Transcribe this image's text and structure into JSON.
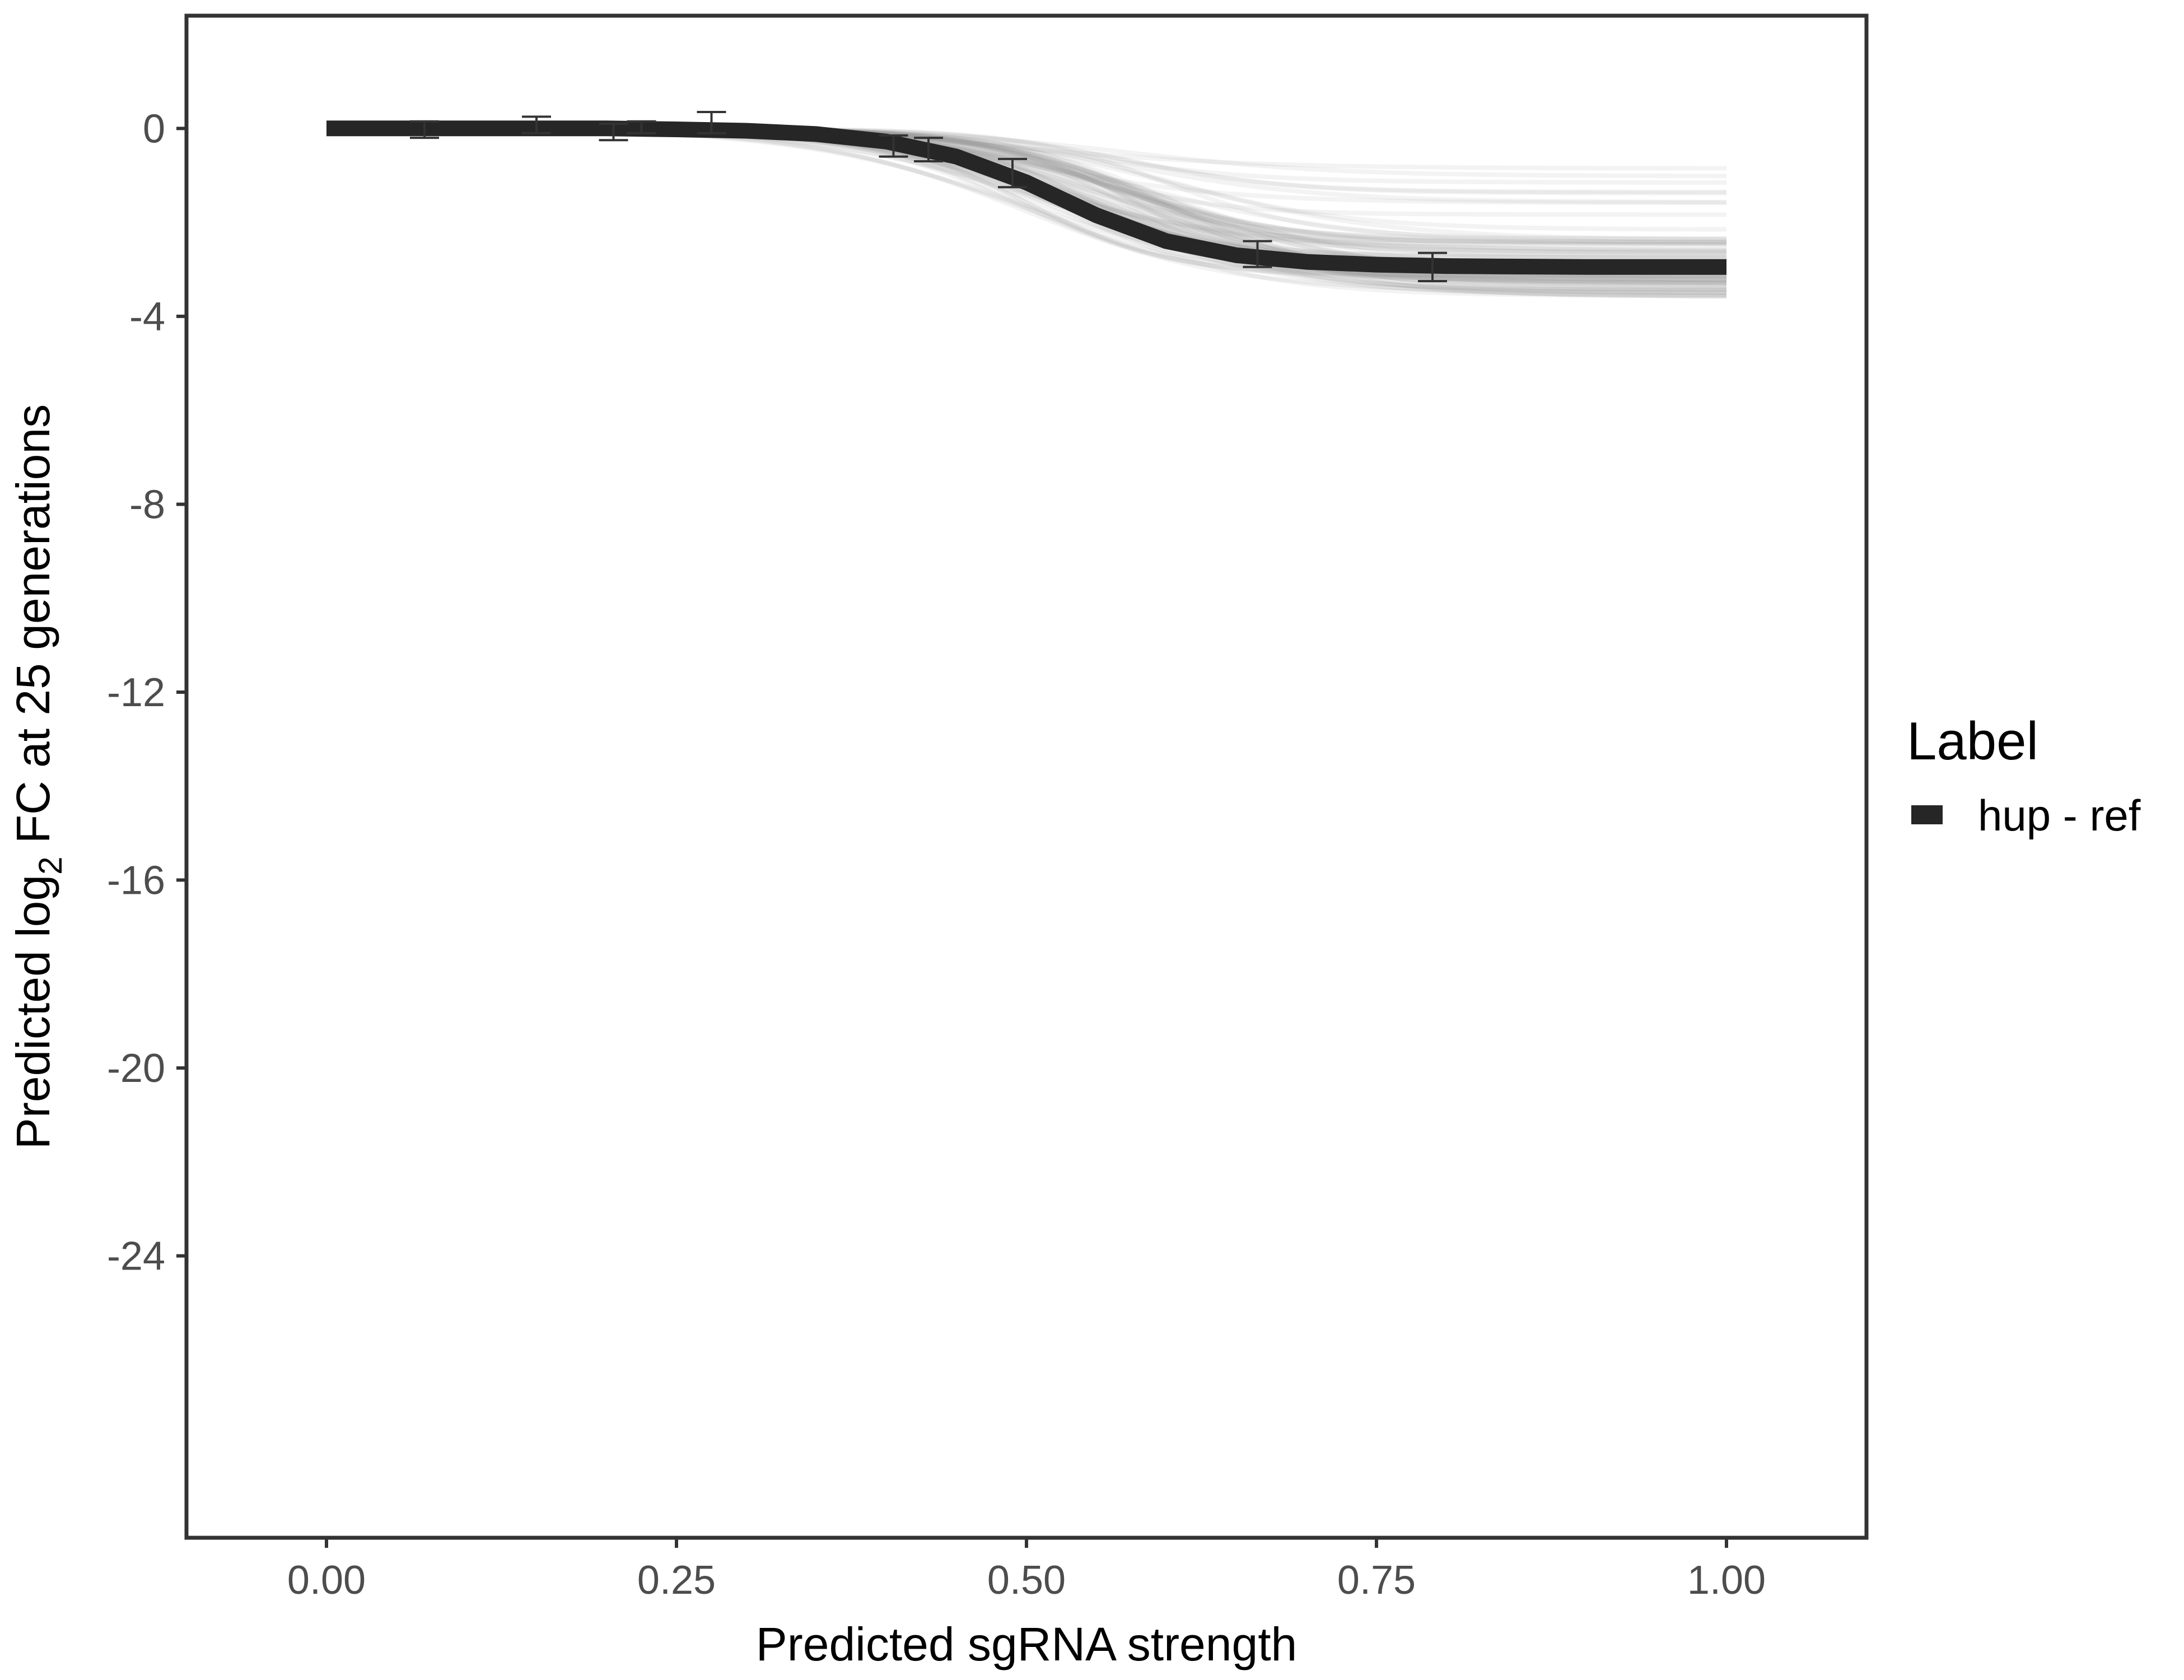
{
  "chart_data": {
    "type": "line",
    "xlabel": "Predicted sgRNA strength",
    "ylabel_parts": {
      "prefix": "Predicted  log",
      "subscript": "2",
      "suffix": " FC at 25 generations"
    },
    "xlim": [
      -0.1,
      1.1
    ],
    "ylim": [
      -30.0,
      2.4
    ],
    "x_ticks": [
      0.0,
      0.25,
      0.5,
      0.75,
      1.0
    ],
    "x_tick_labels": [
      "0.00",
      "0.25",
      "0.50",
      "0.75",
      "1.00"
    ],
    "y_ticks": [
      0,
      -4,
      -8,
      -12,
      -16,
      -20,
      -24
    ],
    "y_tick_labels": [
      "0",
      "-4",
      "-8",
      "-12",
      "-16",
      "-20",
      "-24"
    ],
    "grid": false,
    "legend": {
      "title": "Label",
      "position": "right",
      "entries": [
        "hup - ref"
      ]
    },
    "series": [
      {
        "name": "hup - ref",
        "color": "#262626",
        "x": [
          0.0,
          0.05,
          0.1,
          0.15,
          0.2,
          0.25,
          0.3,
          0.35,
          0.4,
          0.45,
          0.5,
          0.55,
          0.6,
          0.65,
          0.7,
          0.75,
          0.8,
          0.85,
          0.9,
          0.95,
          1.0
        ],
        "y": [
          0.0,
          0.0,
          0.0,
          0.0,
          0.0,
          -0.02,
          -0.05,
          -0.12,
          -0.28,
          -0.6,
          -1.15,
          -1.85,
          -2.4,
          -2.7,
          -2.84,
          -2.9,
          -2.93,
          -2.94,
          -2.95,
          -2.95,
          -2.95
        ]
      }
    ],
    "error_bars": [
      {
        "x": 0.07,
        "y": 0.0,
        "lo": -0.2,
        "hi": 0.15
      },
      {
        "x": 0.15,
        "y": 0.05,
        "lo": -0.1,
        "hi": 0.25
      },
      {
        "x": 0.205,
        "y": -0.05,
        "lo": -0.25,
        "hi": 0.1
      },
      {
        "x": 0.225,
        "y": 0.0,
        "lo": -0.1,
        "hi": 0.15
      },
      {
        "x": 0.275,
        "y": 0.1,
        "lo": -0.1,
        "hi": 0.35
      },
      {
        "x": 0.405,
        "y": -0.35,
        "lo": -0.6,
        "hi": -0.15
      },
      {
        "x": 0.43,
        "y": -0.4,
        "lo": -0.7,
        "hi": -0.2
      },
      {
        "x": 0.49,
        "y": -0.95,
        "lo": -1.25,
        "hi": -0.65
      },
      {
        "x": 0.665,
        "y": -2.65,
        "lo": -2.95,
        "hi": -2.4
      },
      {
        "x": 0.79,
        "y": -2.95,
        "lo": -3.25,
        "hi": -2.65
      }
    ],
    "posterior_band": {
      "color": "#9e9e9e",
      "n_draws": 80
    }
  }
}
